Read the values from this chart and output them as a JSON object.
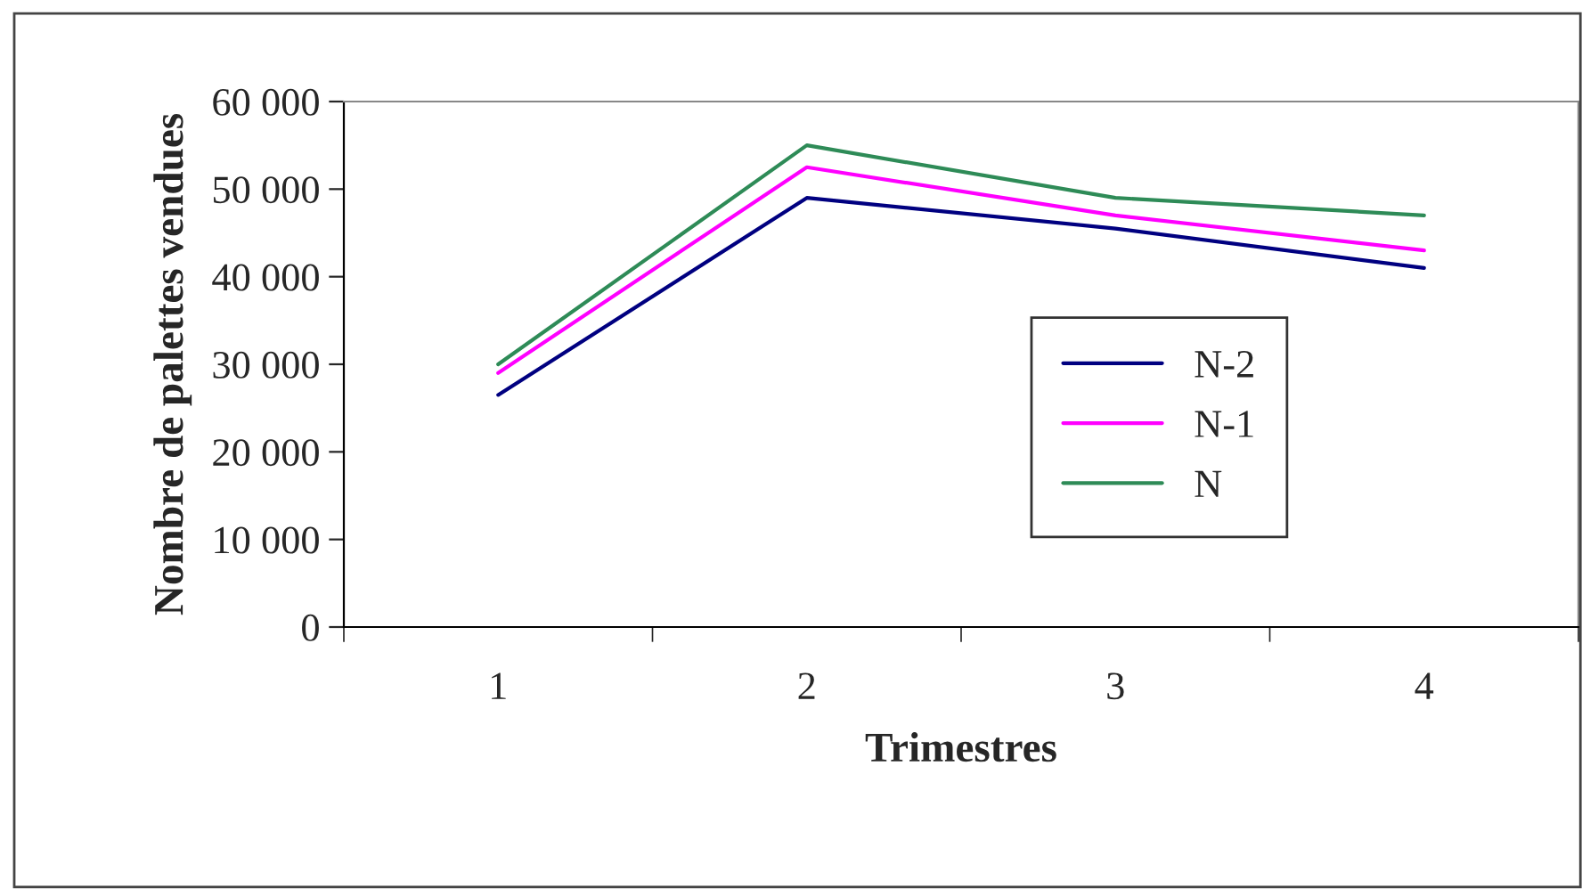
{
  "chart_data": {
    "type": "line",
    "xlabel": "Trimestres",
    "ylabel": "Nombre de palettes vendues",
    "categories": [
      "1",
      "2",
      "3",
      "4"
    ],
    "series": [
      {
        "name": "N-2",
        "color": "#000080",
        "values": [
          26500,
          49000,
          45500,
          41000
        ]
      },
      {
        "name": "N-1",
        "color": "#ff00ff",
        "values": [
          29000,
          52500,
          47000,
          43000
        ]
      },
      {
        "name": "N",
        "color": "#2e8b57",
        "values": [
          30000,
          55000,
          49000,
          47000
        ]
      }
    ],
    "ylim": [
      0,
      60000
    ],
    "yticks": [
      0,
      {
        "value": 10000,
        "label": "10 000"
      },
      {
        "value": 20000,
        "label": "20 000"
      },
      {
        "value": 30000,
        "label": "30 000"
      },
      {
        "value": 40000,
        "label": "40 000"
      },
      {
        "value": 50000,
        "label": "50 000"
      },
      {
        "value": 60000,
        "label": "60 000"
      }
    ],
    "grid": false,
    "legend": "right",
    "marker": "none",
    "line_style": "solid"
  }
}
